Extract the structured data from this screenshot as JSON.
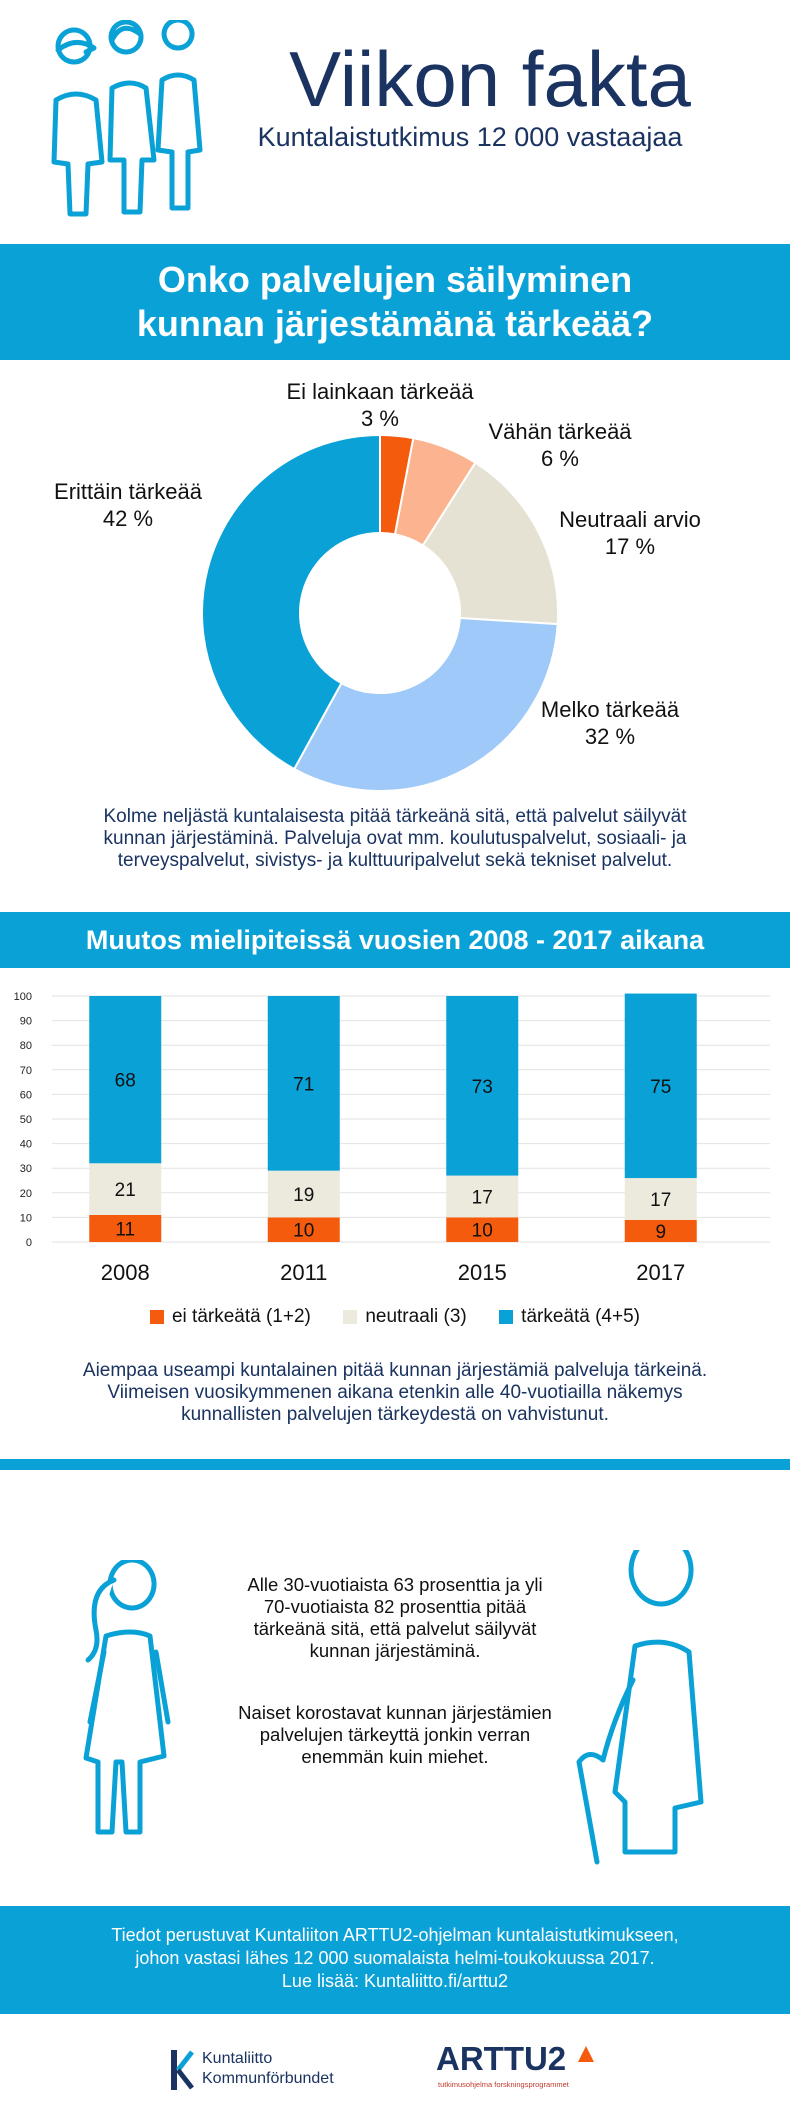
{
  "header": {
    "title": "Viikon fakta",
    "subtitle": "Kuntalaistutkimus 12 000 vastaajaa"
  },
  "q1": {
    "question": "Onko palvelujen säilyminen kunnan järjestämänä tärkeää?"
  },
  "chart_data": [
    {
      "type": "pie",
      "title": "Onko palvelujen säilyminen kunnan järjestämänä tärkeää?",
      "slices": [
        {
          "label": "Ei lainkaan tärkeää",
          "value_label": "3 %",
          "value": 3,
          "color": "#f55b0c"
        },
        {
          "label": "Vähän tärkeää",
          "value_label": "6 %",
          "value": 6,
          "color": "#fcb390"
        },
        {
          "label": "Neutraali arvio",
          "value_label": "17 %",
          "value": 17,
          "color": "#e6e2d3"
        },
        {
          "label": "Melko tärkeää",
          "value_label": "32 %",
          "value": 32,
          "color": "#9fc9f8"
        },
        {
          "label": "Erittäin tärkeää",
          "value_label": "42 %",
          "value": 42,
          "color": "#0aa2d6"
        }
      ]
    },
    {
      "type": "bar",
      "stacked": true,
      "title": "Muutos mielipiteissä vuosien 2008 - 2017 aikana",
      "categories": [
        "2008",
        "2011",
        "2015",
        "2017"
      ],
      "series": [
        {
          "name": "ei tärkeätä (1+2)",
          "values": [
            11,
            10,
            10,
            9
          ],
          "color": "#f55b0c"
        },
        {
          "name": "neutraali (3)",
          "values": [
            21,
            19,
            17,
            17
          ],
          "color": "#ece9dd"
        },
        {
          "name": "tärkeätä (4+5)",
          "values": [
            68,
            71,
            73,
            75
          ],
          "color": "#0aa2d6"
        }
      ],
      "ylim": [
        0,
        100
      ],
      "yticks": [
        "0",
        "10",
        "20",
        "30",
        "40",
        "50",
        "60",
        "70",
        "80",
        "90",
        "100"
      ]
    }
  ],
  "q1_text": [
    "Kolme neljästä kuntalaisesta pitää tärkeänä sitä, että palvelut säilyvät",
    "kunnan järjestäminä. Palveluja ovat mm. koulutuspalvelut, sosiaali- ja",
    "terveyspalvelut, sivistys- ja kulttuuripalvelut sekä tekniset palvelut."
  ],
  "trend": {
    "title": "Muutos mielipiteissä vuosien 2008 - 2017 aikana"
  },
  "trend_text": [
    "Aiempaa useampi kuntalainen pitää kunnan järjestämiä palveluja tärkeinä.",
    "Viimeisen vuosikymmenen aikana etenkin alle 40-vuotiailla näkemys",
    "kunnallisten palvelujen tärkeydestä on vahvistunut."
  ],
  "age_text": [
    "Alle 30-vuotiaista 63 prosenttia ja yli",
    "70-vuotiaista 82 prosenttia pitää",
    "tärkeänä sitä, että palvelut säilyvät",
    "kunnan järjestäminä."
  ],
  "gender_text": [
    "Naiset korostavat kunnan järjestämien",
    "palvelujen tärkeyttä jonkin verran",
    "enemmän kuin miehet."
  ],
  "footer": {
    "lines": [
      "Tiedot perustuvat Kuntaliiton ARTTU2-ohjelman kuntalaistutkimukseen,",
      "johon vastasi lähes 12 000 suomalaista helmi-toukokuussa 2017.",
      "Lue lisää: Kuntaliitto.fi/arttu2"
    ]
  },
  "logos": {
    "kuntaliitto_line1": "Kuntaliitto",
    "kuntaliitto_line2": "Kommunförbundet",
    "arttu": "ARTTU2",
    "arttu_tagline": "tutkimusohjelma  forskningsprogrammet"
  },
  "colors": {
    "accent": "#0aa2d6",
    "navy": "#1a3361",
    "orange": "#f55b0c"
  }
}
